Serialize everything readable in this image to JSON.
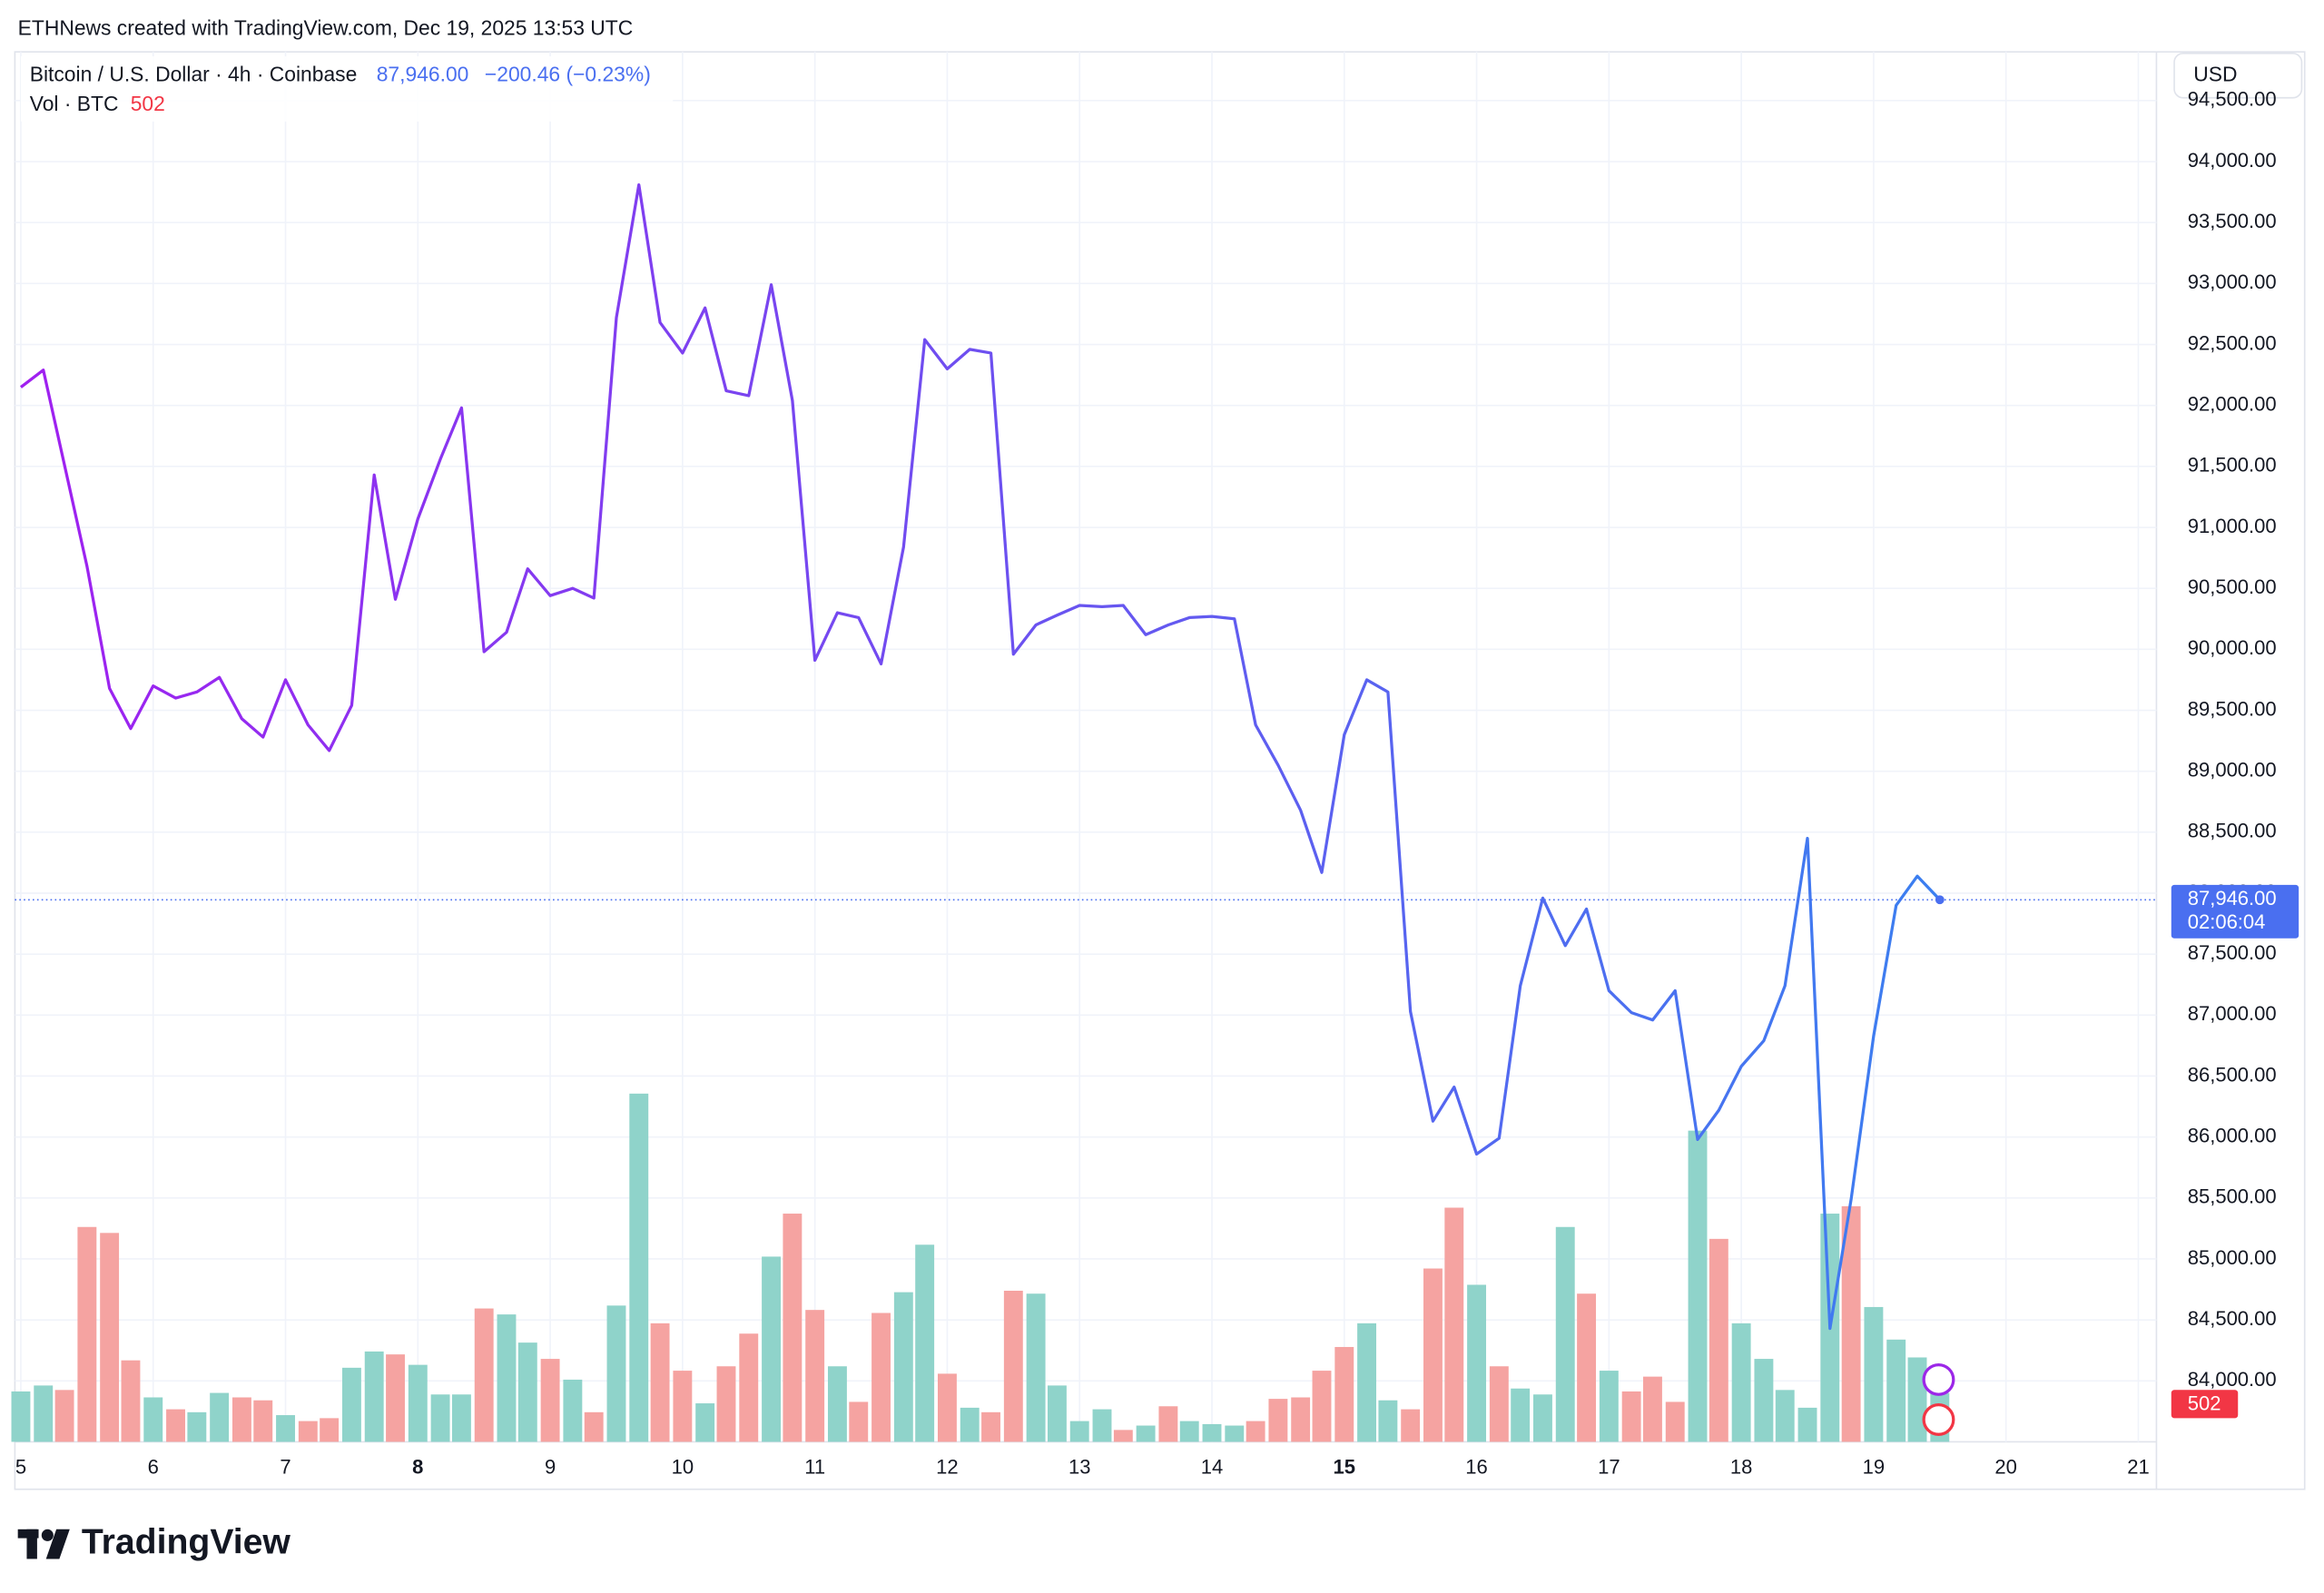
{
  "header": {
    "credit": "ETHNews created with TradingView.com, Dec 19, 2025 13:53 UTC",
    "symbol": "Bitcoin / U.S. Dollar · 4h · Coinbase",
    "change": {
      "value": -200.46,
      "label": "−200.46 (−0.23%)"
    },
    "volume_label": "Vol · BTC",
    "currency": "USD"
  },
  "footer": {
    "brand": "TradingView"
  },
  "chart_data": {
    "type": "line",
    "x": [
      5,
      5.17,
      5.33,
      5.5,
      5.67,
      5.83,
      6,
      6.17,
      6.33,
      6.5,
      6.67,
      6.83,
      7,
      7.17,
      7.33,
      7.5,
      7.67,
      7.83,
      8,
      8.17,
      8.33,
      8.5,
      8.67,
      8.83,
      9,
      9.17,
      9.33,
      9.5,
      9.67,
      9.83,
      10,
      10.17,
      10.33,
      10.5,
      10.67,
      10.83,
      11,
      11.17,
      11.33,
      11.5,
      11.67,
      11.83,
      12,
      12.17,
      12.33,
      12.5,
      12.67,
      12.83,
      13,
      13.17,
      13.33,
      13.5,
      13.67,
      13.83,
      14,
      14.17,
      14.33,
      14.5,
      14.67,
      14.83,
      15,
      15.17,
      15.33,
      15.5,
      15.67,
      15.83,
      16,
      16.17,
      16.33,
      16.5,
      16.67,
      16.83,
      17,
      17.17,
      17.33,
      17.5,
      17.67,
      17.83,
      18,
      18.17,
      18.33,
      18.5,
      18.67,
      18.83,
      19,
      19.17,
      19.33,
      19.5
    ],
    "values": [
      92150,
      92290,
      91510,
      90680,
      89680,
      89350,
      89700,
      89600,
      89650,
      89770,
      89430,
      89280,
      89750,
      89380,
      89170,
      89540,
      91430,
      90410,
      91070,
      91560,
      91980,
      89980,
      90140,
      90660,
      90440,
      90500,
      90420,
      92720,
      93810,
      92680,
      92430,
      92800,
      92120,
      92080,
      92990,
      92040,
      89910,
      90300,
      90260,
      89880,
      90840,
      92540,
      92300,
      92460,
      92430,
      89960,
      90200,
      90280,
      90360,
      90350,
      90360,
      90120,
      90200,
      90260,
      90270,
      90250,
      89380,
      89050,
      88680,
      88170,
      89300,
      89750,
      89650,
      87030,
      86130,
      86410,
      85860,
      85990,
      87240,
      87960,
      87570,
      87870,
      87200,
      87020,
      86960,
      87200,
      85980,
      86220,
      86580,
      86790,
      87240,
      88450,
      84430,
      85490,
      86830,
      87900,
      88140,
      87946
    ],
    "line_colors": [
      "#a020f0",
      "#3b7ff0"
    ],
    "volume": {
      "values": [
        517,
        578,
        532,
        2204,
        2143,
        836,
        456,
        334,
        304,
        502,
        456,
        426,
        274,
        213,
        243,
        760,
        927,
        897,
        790,
        486,
        486,
        1368,
        1307,
        1018,
        851,
        638,
        304,
        1398,
        3572,
        1216,
        730,
        395,
        775,
        1110,
        1900,
        2341,
        1353,
        775,
        410,
        1322,
        1535,
        2022,
        699,
        350,
        304,
        1550,
        1520,
        578,
        213,
        334,
        122,
        167,
        365,
        213,
        182,
        167,
        213,
        441,
        456,
        730,
        973,
        1216,
        426,
        334,
        1778,
        2402,
        1611,
        775,
        547,
        486,
        2204,
        1520,
        730,
        517,
        669,
        410,
        3192,
        2082,
        1216,
        851,
        532,
        350,
        2341,
        2417,
        1383,
        1049,
        866,
        502
      ],
      "rising": [
        true,
        true,
        false,
        false,
        false,
        false,
        true,
        false,
        true,
        true,
        false,
        false,
        true,
        false,
        false,
        true,
        true,
        false,
        true,
        true,
        true,
        false,
        true,
        true,
        false,
        true,
        false,
        true,
        true,
        false,
        false,
        true,
        false,
        false,
        true,
        false,
        false,
        true,
        false,
        false,
        true,
        true,
        false,
        true,
        false,
        false,
        true,
        true,
        true,
        true,
        false,
        true,
        false,
        true,
        true,
        true,
        false,
        false,
        false,
        false,
        false,
        true,
        true,
        false,
        false,
        false,
        true,
        false,
        true,
        true,
        true,
        false,
        true,
        false,
        false,
        false,
        true,
        false,
        true,
        true,
        true,
        true,
        true,
        false,
        true,
        true,
        true,
        true
      ],
      "up_color": "#8fd3ca",
      "down_color": "#f5a3a1"
    },
    "last_price": {
      "value": 87946,
      "label": "87,946.00",
      "countdown": "02:06:04",
      "color": "#4a6ff0"
    },
    "xlim": [
      4.955,
      21.137
    ],
    "xticks": [
      5,
      6,
      7,
      8,
      9,
      10,
      11,
      12,
      13,
      14,
      15,
      16,
      17,
      18,
      19,
      20,
      21
    ],
    "xticks_bold": [
      false,
      false,
      false,
      true,
      false,
      false,
      false,
      false,
      false,
      false,
      true,
      false,
      false,
      false,
      false,
      false,
      false
    ],
    "ylim": [
      83500,
      94900
    ],
    "yticks": [
      {
        "value": 84000,
        "label": "84,000.00"
      },
      {
        "value": 84500,
        "label": "84,500.00"
      },
      {
        "value": 85000,
        "label": "85,000.00"
      },
      {
        "value": 85500,
        "label": "85,500.00"
      },
      {
        "value": 86000,
        "label": "86,000.00"
      },
      {
        "value": 86500,
        "label": "86,500.00"
      },
      {
        "value": 87000,
        "label": "87,000.00"
      },
      {
        "value": 87500,
        "label": "87,500.00"
      },
      {
        "value": 88000,
        "label": "88,000.00"
      },
      {
        "value": 88500,
        "label": "88,500.00"
      },
      {
        "value": 89000,
        "label": "89,000.00"
      },
      {
        "value": 89500,
        "label": "89,500.00"
      },
      {
        "value": 90000,
        "label": "90,000.00"
      },
      {
        "value": 90500,
        "label": "90,500.00"
      },
      {
        "value": 91000,
        "label": "91,000.00"
      },
      {
        "value": 91500,
        "label": "91,500.00"
      },
      {
        "value": 92000,
        "label": "92,000.00"
      },
      {
        "value": 92500,
        "label": "92,500.00"
      },
      {
        "value": 93000,
        "label": "93,000.00"
      },
      {
        "value": 93500,
        "label": "93,500.00"
      },
      {
        "value": 94000,
        "label": "94,000.00"
      },
      {
        "value": 94500,
        "label": "94,500.00"
      }
    ],
    "grid": true
  }
}
